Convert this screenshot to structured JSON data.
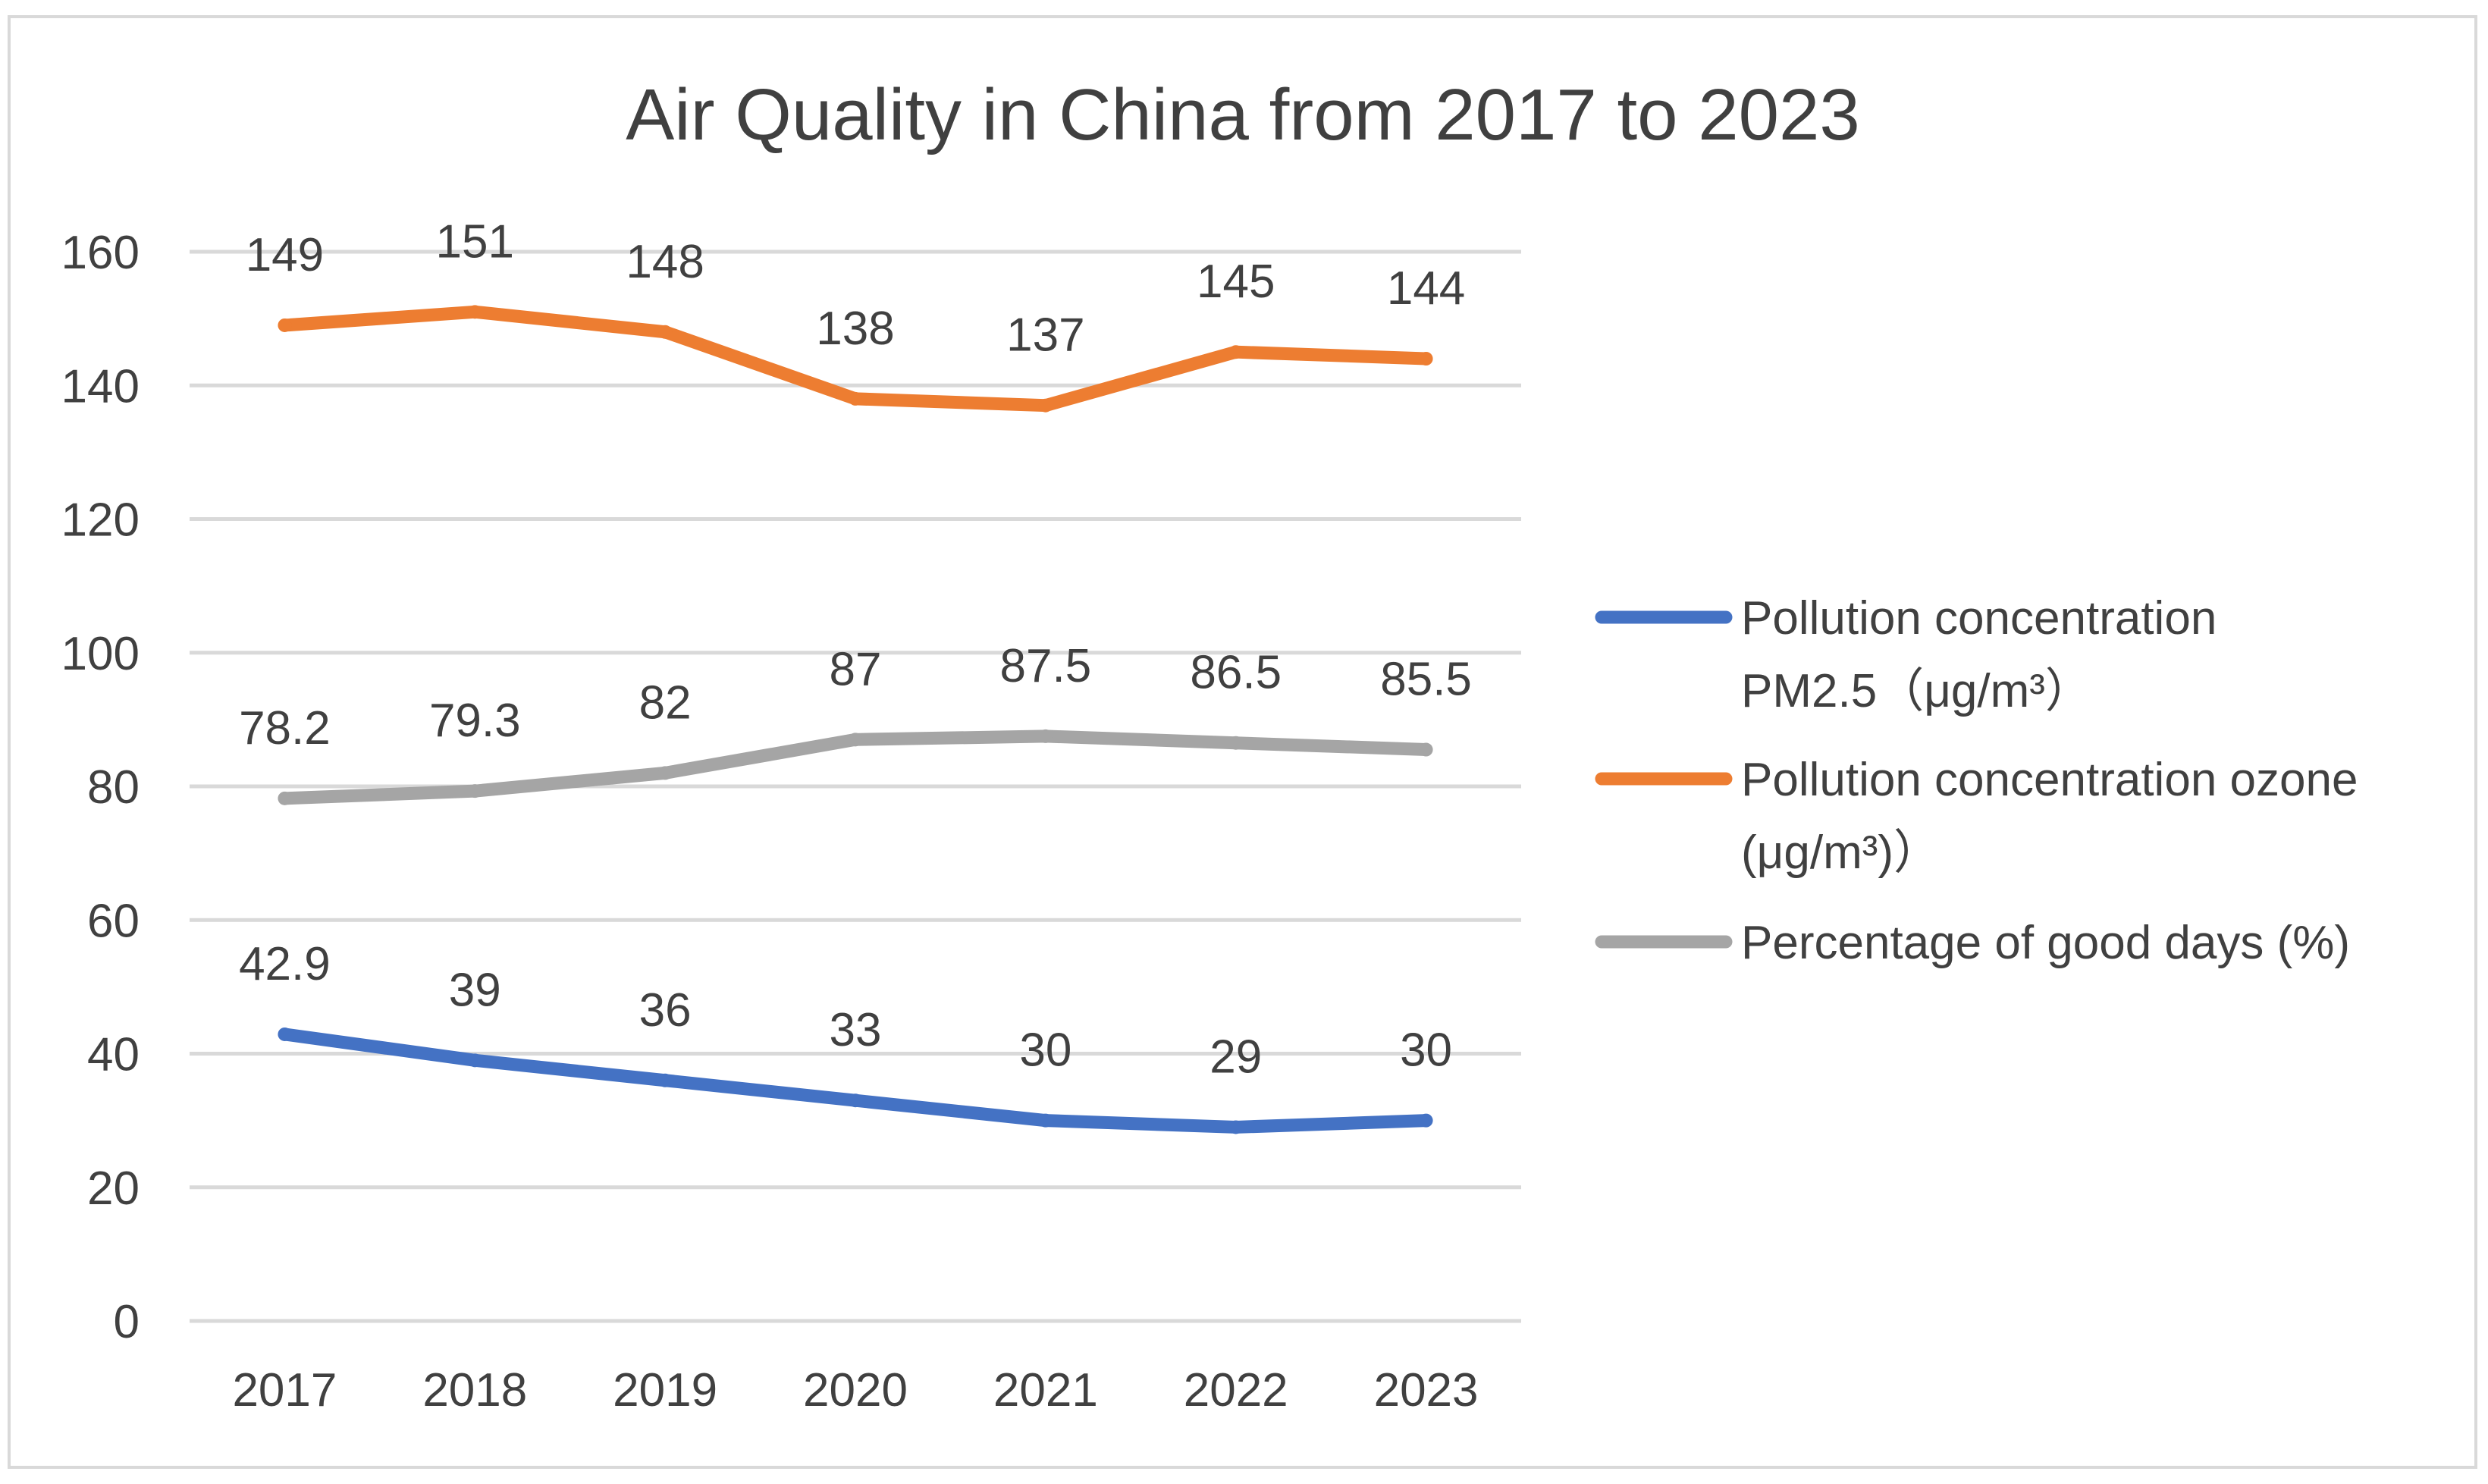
{
  "chart_data": {
    "type": "line",
    "title": "Air Quality in China from 2017 to 2023",
    "categories": [
      "2017",
      "2018",
      "2019",
      "2020",
      "2021",
      "2022",
      "2023"
    ],
    "ylim": [
      0,
      160
    ],
    "yticks": [
      0,
      20,
      40,
      60,
      80,
      100,
      120,
      140,
      160
    ],
    "ytick_labels": [
      "0",
      "20",
      "40",
      "60",
      "80",
      "100",
      "120",
      "140",
      "160"
    ],
    "grid": true,
    "legend_position": "right",
    "xlabel": "",
    "ylabel": "",
    "series": [
      {
        "name_lines": [
          "Pollution concentration",
          "PM2.5（μg/m³）"
        ],
        "color": "#4472C4",
        "values": [
          42.9,
          39,
          36,
          33,
          30,
          29,
          30
        ],
        "labels": [
          "42.9",
          "39",
          "36",
          "33",
          "30",
          "29",
          "30"
        ]
      },
      {
        "name_lines": [
          "Pollution concentration ozone",
          "(μg/m³)）"
        ],
        "color": "#ED7D31",
        "values": [
          149,
          151,
          148,
          138,
          137,
          145,
          144
        ],
        "labels": [
          "149",
          "151",
          "148",
          "138",
          "137",
          "145",
          "144"
        ]
      },
      {
        "name_lines": [
          "Percentage of good days (%)"
        ],
        "color": "#A5A5A5",
        "values": [
          78.2,
          79.3,
          82,
          87,
          87.5,
          86.5,
          85.5
        ],
        "labels": [
          "78.2",
          "79.3",
          "82",
          "87",
          "87.5",
          "86.5",
          "85.5"
        ]
      }
    ]
  }
}
